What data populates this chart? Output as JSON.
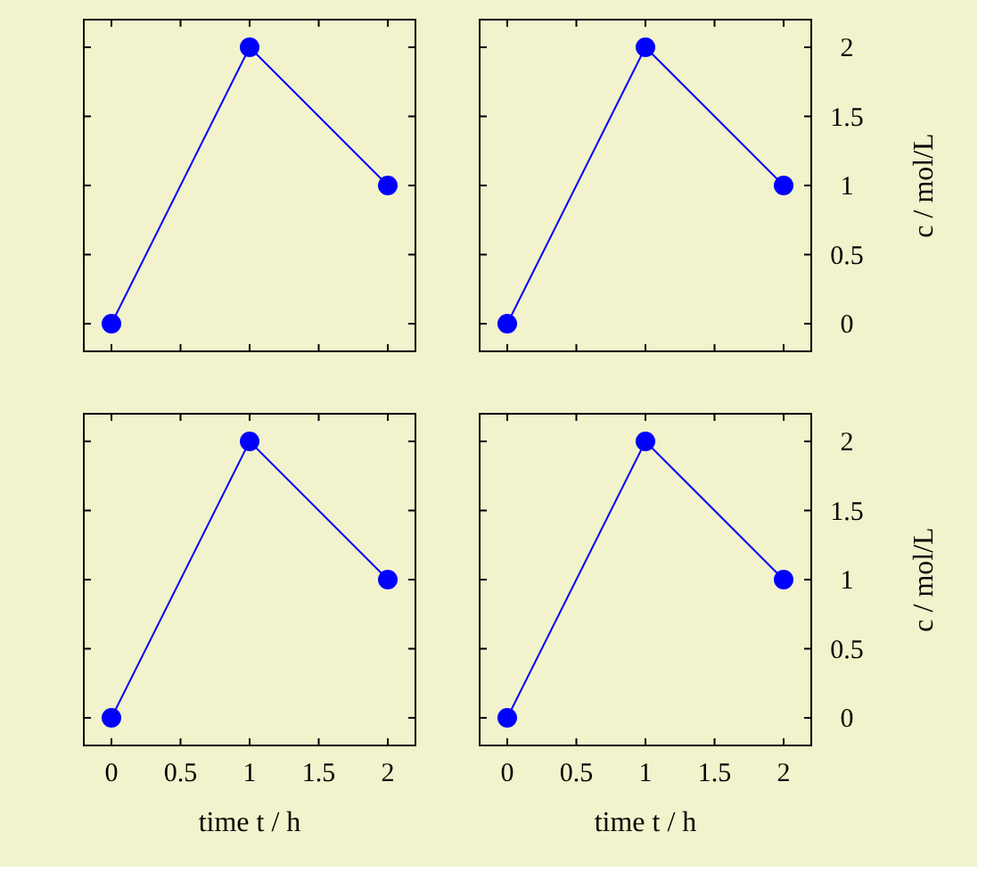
{
  "chart_data": [
    {
      "type": "line",
      "x": [
        0,
        1,
        2
      ],
      "series": [
        {
          "color": "#0000ff",
          "values": [
            0,
            2,
            1
          ]
        }
      ],
      "xlim": [
        -0.2,
        2.2
      ],
      "ylim": [
        -0.2,
        2.2
      ],
      "xticks": [
        0,
        0.5,
        1,
        1.5,
        2
      ],
      "yticks": [
        0,
        0.5,
        1,
        1.5,
        2
      ],
      "marker": "circle",
      "tick_labels": false
    },
    {
      "type": "line",
      "x": [
        0,
        1,
        2
      ],
      "series": [
        {
          "color": "#0000ff",
          "values": [
            0,
            2,
            1
          ]
        }
      ],
      "xlim": [
        -0.2,
        2.2
      ],
      "ylim": [
        -0.2,
        2.2
      ],
      "xticks": [
        0,
        0.5,
        1,
        1.5,
        2
      ],
      "yticks": [
        0,
        0.5,
        1,
        1.5,
        2
      ],
      "marker": "circle",
      "tick_labels": "y",
      "ylabel": "c / mol/L"
    },
    {
      "type": "line",
      "x": [
        0,
        1,
        2
      ],
      "series": [
        {
          "color": "#0000ff",
          "values": [
            0,
            2,
            1
          ]
        }
      ],
      "xlim": [
        -0.2,
        2.2
      ],
      "ylim": [
        -0.2,
        2.2
      ],
      "xticks": [
        0,
        0.5,
        1,
        1.5,
        2
      ],
      "yticks": [
        0,
        0.5,
        1,
        1.5,
        2
      ],
      "marker": "circle",
      "tick_labels": "x",
      "xlabel": "time t / h"
    },
    {
      "type": "line",
      "x": [
        0,
        1,
        2
      ],
      "series": [
        {
          "color": "#0000ff",
          "values": [
            0,
            2,
            1
          ]
        }
      ],
      "xlim": [
        -0.2,
        2.2
      ],
      "ylim": [
        -0.2,
        2.2
      ],
      "xticks": [
        0,
        0.5,
        1,
        1.5,
        2
      ],
      "yticks": [
        0,
        0.5,
        1,
        1.5,
        2
      ],
      "marker": "circle",
      "xlabel": "time t / h",
      "ylabel": "c / mol/L"
    }
  ]
}
